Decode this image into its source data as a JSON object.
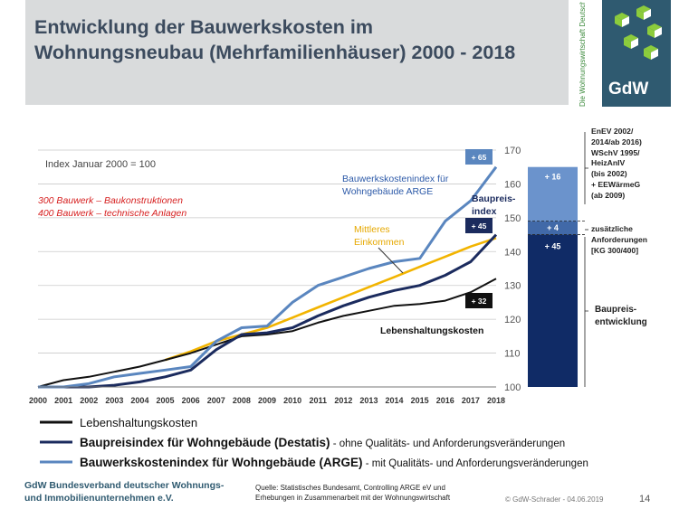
{
  "header": {
    "title_line1": "Entwicklung der Bauwerkskosten im",
    "title_line2": "Wohnungsneubau (Mehrfamilienhäuser) 2000 - 2018",
    "logo_tagline": "Die Wohnungswirtschaft Deutschland",
    "logo_text": "GdW"
  },
  "chart_data": {
    "type": "line",
    "index_note": "Index Januar 2000 = 100",
    "x": [
      2000,
      2001,
      2002,
      2003,
      2004,
      2005,
      2006,
      2007,
      2008,
      2009,
      2010,
      2011,
      2012,
      2013,
      2014,
      2015,
      2016,
      2017,
      2018
    ],
    "xticks": [
      "2000",
      "2001",
      "2002",
      "2003",
      "2004",
      "2005",
      "2006",
      "2007",
      "2008",
      "2009",
      "2010",
      "2011",
      "2012",
      "2013",
      "2014",
      "2015",
      "2016",
      "2017",
      "2018"
    ],
    "ylim": [
      100,
      170
    ],
    "yticks": [
      100,
      110,
      120,
      130,
      140,
      150,
      160,
      170
    ],
    "grid": true,
    "series": [
      {
        "name": "Lebenshaltungskosten",
        "color": "#111111",
        "values": [
          100,
          102,
          103,
          104.5,
          106,
          108,
          110,
          112.5,
          115,
          115.5,
          116.5,
          119,
          121,
          122.5,
          124,
          124.5,
          125.5,
          128,
          132
        ]
      },
      {
        "name": "Baupreisindex für Wohngebäude (Destatis)",
        "color": "#1b2b5e",
        "values": [
          100,
          100,
          100,
          100.5,
          101.5,
          103,
          105,
          111,
          115.5,
          116,
          117.5,
          121,
          124,
          126.5,
          128.5,
          130,
          133,
          137,
          145
        ]
      },
      {
        "name": "Bauwerkskostenindex für Wohngebäude (ARGE)",
        "color": "#5a86bf",
        "values": [
          100,
          100,
          101,
          103,
          104,
          105,
          106,
          113.5,
          117.5,
          118,
          125,
          130,
          132.5,
          135,
          137,
          138,
          149,
          155,
          165
        ]
      },
      {
        "name": "Mittleres Einkommen",
        "color": "#f2b400",
        "values": [
          null,
          null,
          null,
          null,
          null,
          108,
          110.5,
          113.5,
          115.5,
          117.5,
          120.5,
          123.5,
          126.5,
          129.5,
          132.5,
          135.5,
          138.5,
          141.5,
          144
        ]
      }
    ],
    "end_badges": [
      "+ 65",
      "+ 45",
      "+ 32"
    ],
    "bar": {
      "segments": [
        {
          "label": "+ 45",
          "from": 100,
          "to": 145,
          "color": "#102b66"
        },
        {
          "label": "+ 4",
          "from": 145,
          "to": 149,
          "color": "#4169a8"
        },
        {
          "label": "+ 16",
          "from": 149,
          "to": 165,
          "color": "#6b93cc"
        }
      ]
    },
    "annotations": {
      "kg_line1": "300 Bauwerk – Baukonstruktionen",
      "kg_line2": "400 Bauwerk – technische Anlagen",
      "arge_line1": "Bauwerkskostenindex für",
      "arge_line2": "Wohngebäude ARGE",
      "baupreis_line1": "Baupreis-",
      "baupreis_line2": "index",
      "einkommen_line1": "Mittleres",
      "einkommen_line2": "Einkommen",
      "lebenshaltung": "Lebenshaltungskosten",
      "enev": [
        "EnEV 2002/",
        "2014/ab 2016)",
        "WSchV 1995/",
        "HeizAnIV",
        "(bis 2002)",
        "+ EEWärmeG",
        "(ab 2009)"
      ],
      "anforderungen": [
        "zusätzliche",
        "Anforderungen",
        "[KG 300/400]"
      ],
      "baupreisentw": [
        "Baupreis-",
        "entwicklung"
      ]
    },
    "legend": [
      {
        "name": "Lebenshaltungskosten",
        "suffix": "",
        "color": "#111111"
      },
      {
        "name": "Baupreisindex für Wohngebäude (Destatis)",
        "suffix": " - ohne Qualitäts- und Anforderungsveränderungen",
        "color": "#1b2b5e"
      },
      {
        "name": "Bauwerkskostenindex für Wohngebäude (ARGE)",
        "suffix": " - mit Qualitäts- und Anforderungsveränderungen",
        "color": "#5a86bf"
      }
    ]
  },
  "footer": {
    "org_line1": "GdW Bundesverband deutscher Wohnungs-",
    "org_line2": "und Immobilienunternehmen e.V.",
    "source_line1": "Quelle: Statistisches Bundesamt, Controlling ARGE eV und",
    "source_line2": "Erhebungen in Zusammenarbeit mit der Wohnungswirtschaft",
    "copyright": "© GdW-Schrader - 04.06.2019",
    "page": "14"
  }
}
